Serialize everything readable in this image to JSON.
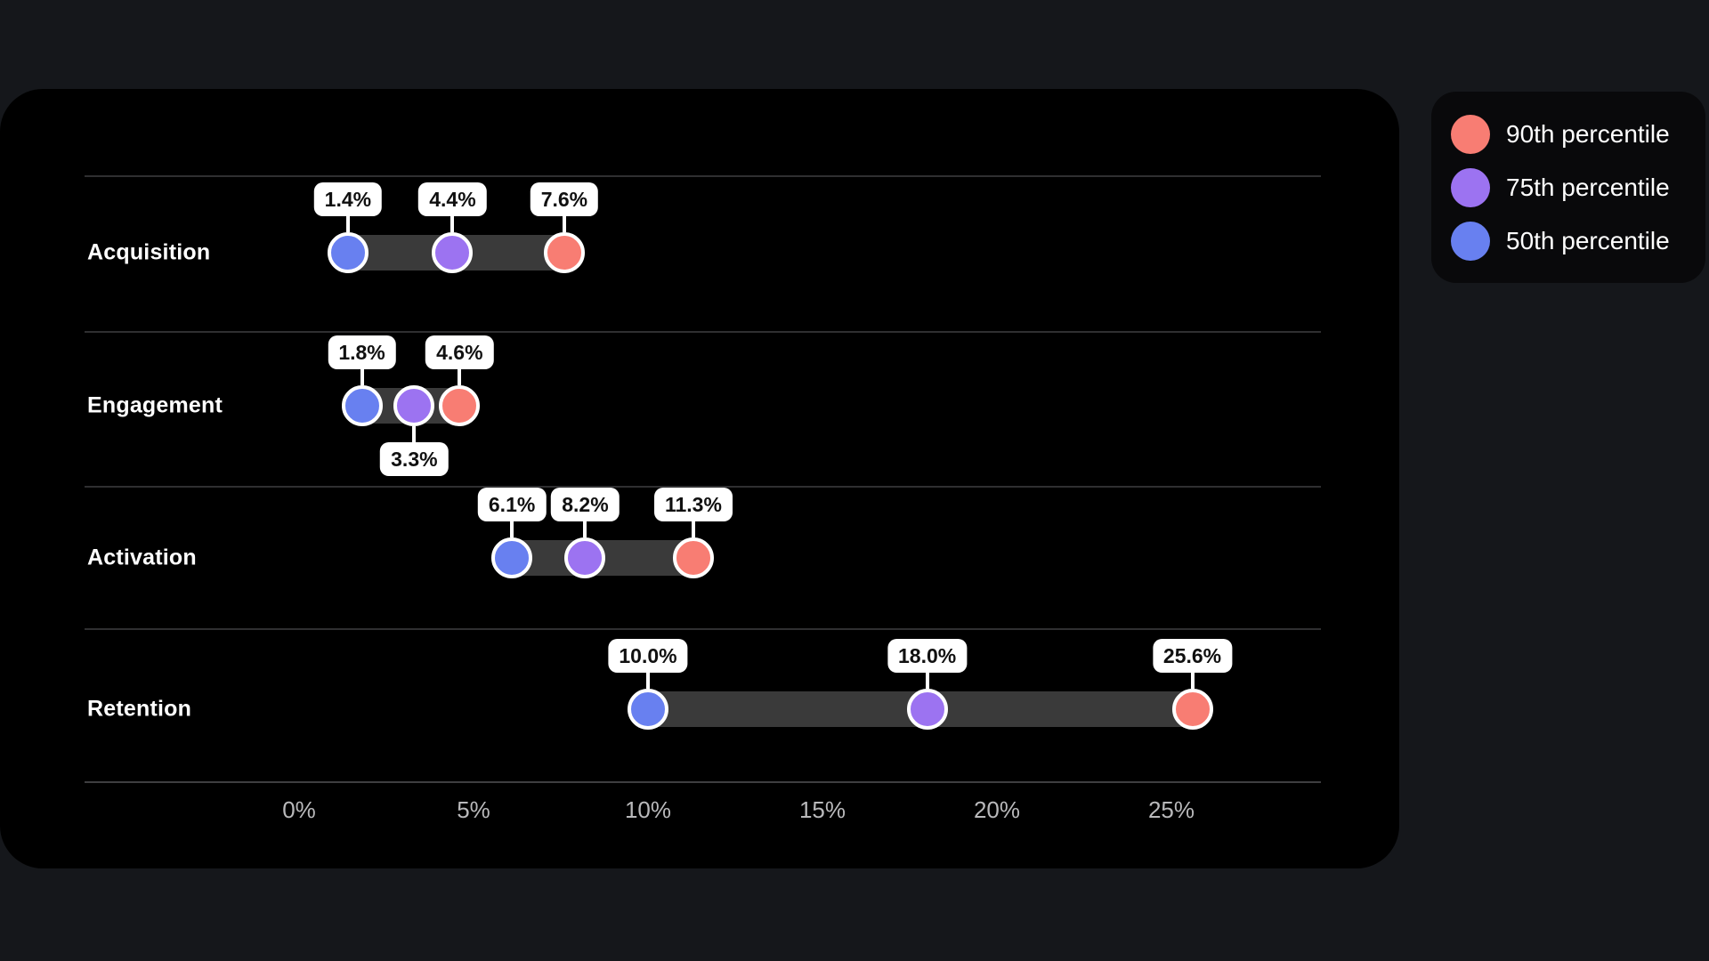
{
  "legend": {
    "items": [
      {
        "label": "90th percentile",
        "color": "#F87D73"
      },
      {
        "label": "75th percentile",
        "color": "#9C73F1"
      },
      {
        "label": "50th percentile",
        "color": "#6880F0"
      }
    ]
  },
  "chart_data": {
    "type": "dumbbell",
    "orientation": "horizontal",
    "categories": [
      "Acquisition",
      "Engagement",
      "Activation",
      "Retention"
    ],
    "series": [
      {
        "name": "50th percentile",
        "color": "#6880F0",
        "values": [
          1.4,
          1.8,
          6.1,
          10.0
        ]
      },
      {
        "name": "75th percentile",
        "color": "#9C73F1",
        "values": [
          4.4,
          3.3,
          8.2,
          18.0
        ]
      },
      {
        "name": "90th percentile",
        "color": "#F87D73",
        "values": [
          7.6,
          4.6,
          11.3,
          25.6
        ]
      }
    ],
    "value_labels": [
      [
        {
          "text": "1.4%",
          "placement": "above"
        },
        {
          "text": "4.4%",
          "placement": "above"
        },
        {
          "text": "7.6%",
          "placement": "above"
        }
      ],
      [
        {
          "text": "1.8%",
          "placement": "above"
        },
        {
          "text": "3.3%",
          "placement": "below"
        },
        {
          "text": "4.6%",
          "placement": "above"
        }
      ],
      [
        {
          "text": "6.1%",
          "placement": "above"
        },
        {
          "text": "8.2%",
          "placement": "above"
        },
        {
          "text": "11.3%",
          "placement": "above"
        }
      ],
      [
        {
          "text": "10.0%",
          "placement": "above"
        },
        {
          "text": "18.0%",
          "placement": "above"
        },
        {
          "text": "25.6%",
          "placement": "above"
        }
      ]
    ],
    "x_ticks": [
      "0%",
      "5%",
      "10%",
      "15%",
      "20%",
      "25%"
    ],
    "x_tick_values": [
      0,
      5,
      10,
      15,
      20,
      25
    ],
    "xlim": [
      0,
      29
    ],
    "grid": "row-separators",
    "range_bar_color": "#3A3A3A",
    "legend_position": "top-right"
  }
}
